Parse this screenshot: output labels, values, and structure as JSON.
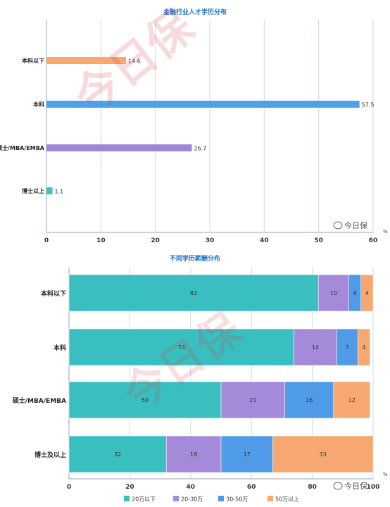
{
  "watermark": "今日保",
  "wechat_logo": "今日保",
  "chart_data": [
    {
      "type": "bar",
      "orientation": "horizontal",
      "title": "金融行业人才学历分布",
      "categories": [
        "本科以下",
        "本科",
        "硕士/MBA/EMBA",
        "博士以上"
      ],
      "values": [
        14.6,
        57.5,
        26.7,
        1.1
      ],
      "colors": [
        "#f7a86e",
        "#4ea1e8",
        "#9f87d8",
        "#3cc2c2"
      ],
      "xlim": [
        0,
        60
      ],
      "xticks": [
        0,
        10,
        20,
        30,
        40,
        50,
        60
      ],
      "x_unit": "%",
      "grid": true
    },
    {
      "type": "bar",
      "orientation": "horizontal",
      "stacked": true,
      "title": "不同学历薪酬分布",
      "categories": [
        "本科以下",
        "本科",
        "硕士/MBA/EMBA",
        "博士及以上"
      ],
      "series": [
        {
          "name": "20万以下",
          "values": [
            82,
            74,
            50,
            32
          ],
          "color": "#39bfbf"
        },
        {
          "name": "20-30万",
          "values": [
            10,
            14,
            21,
            18
          ],
          "color": "#a58ad9"
        },
        {
          "name": "30-50万",
          "values": [
            4,
            7,
            16,
            17
          ],
          "color": "#4f9be8"
        },
        {
          "name": "50万以上",
          "values": [
            4,
            4,
            12,
            33
          ],
          "color": "#f6a870"
        }
      ],
      "xlim": [
        0,
        100
      ],
      "xticks": [
        0,
        20,
        40,
        60,
        80,
        100
      ],
      "x_unit": "%",
      "legend": "bottom",
      "grid": true
    }
  ]
}
